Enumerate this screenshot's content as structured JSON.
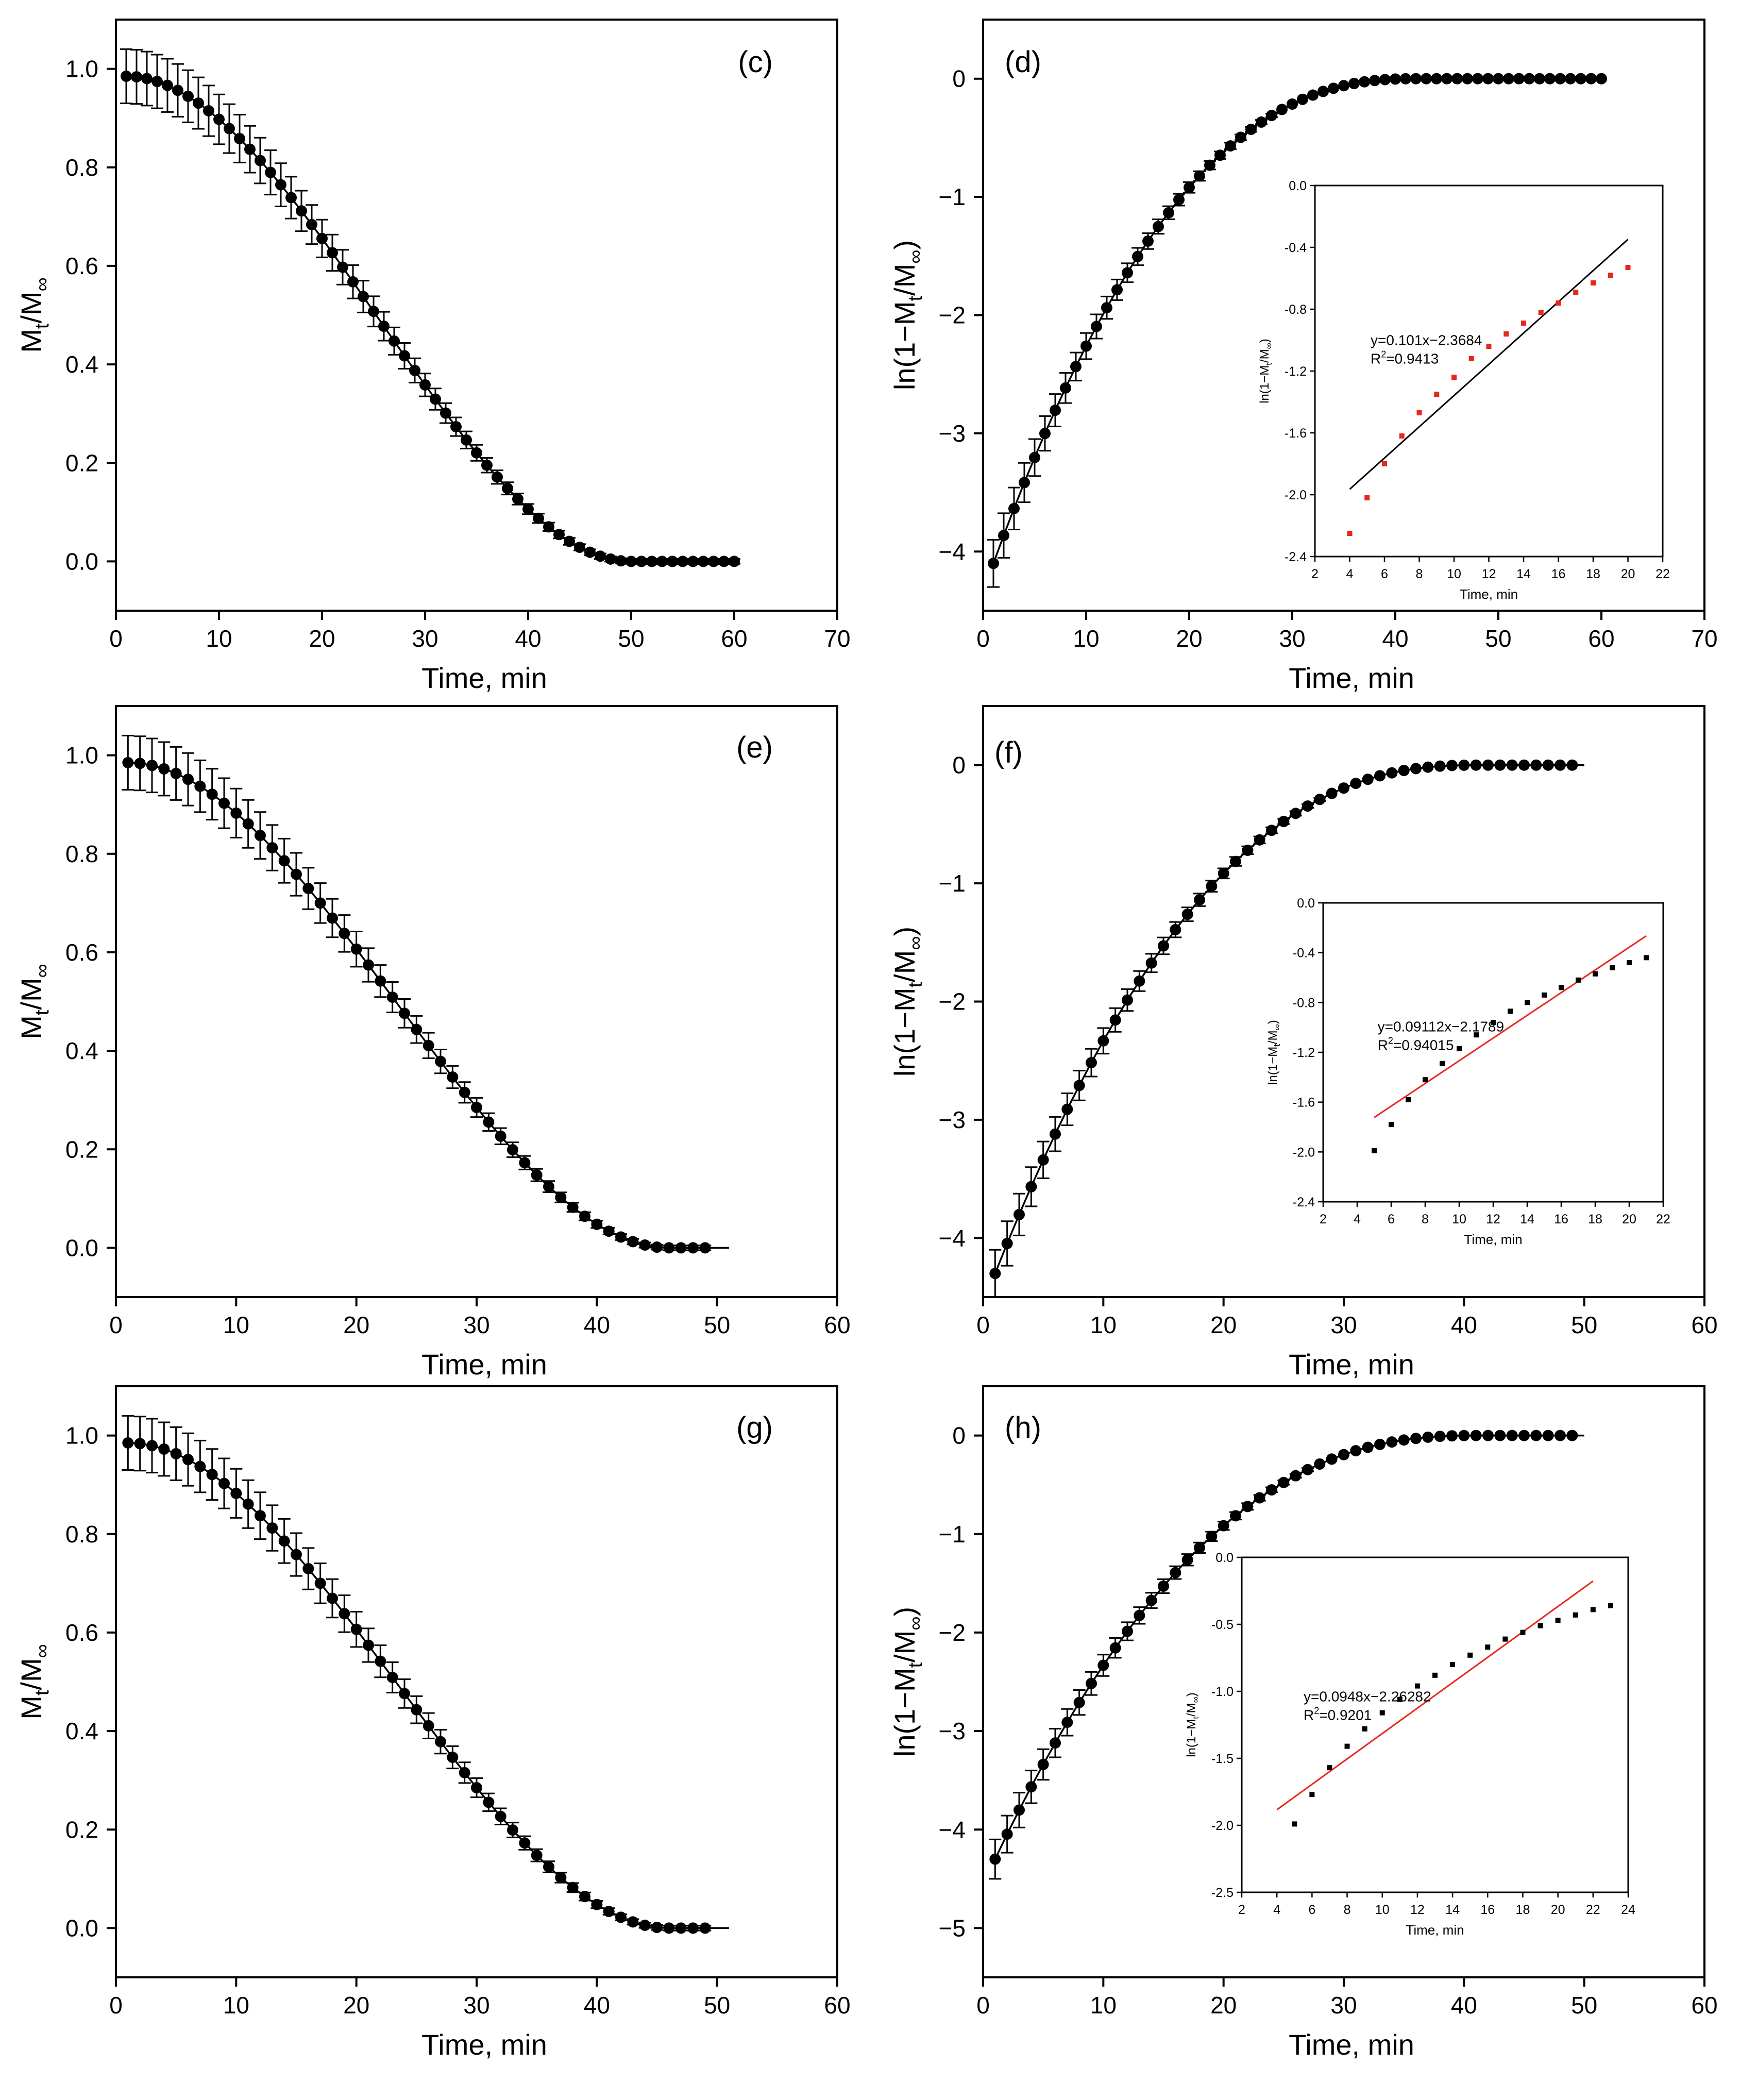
{
  "figure": {
    "panels": [
      {
        "id": "c",
        "label": "(c)"
      },
      {
        "id": "d",
        "label": "(d)"
      },
      {
        "id": "e",
        "label": "(e)"
      },
      {
        "id": "f",
        "label": "(f)"
      },
      {
        "id": "g",
        "label": "(g)"
      },
      {
        "id": "h",
        "label": "(h)"
      }
    ]
  },
  "chart_data": [
    {
      "panel": "(c)",
      "type": "scatter",
      "title": "",
      "xlabel": "Time, min",
      "ylabel": "Mt/M∞",
      "ylabel_main": "M",
      "ylabel_sub": "t",
      "ylabel_rest": "/M",
      "ylabel_sub2": "∞",
      "xlim": [
        0,
        70
      ],
      "ylim": [
        -0.1,
        1.1
      ],
      "xticks": [
        0,
        10,
        20,
        30,
        40,
        50,
        60,
        70
      ],
      "yticks": [
        0.0,
        0.2,
        0.4,
        0.6,
        0.8,
        1.0
      ],
      "ytick_labels": [
        "0.0",
        "0.2",
        "0.4",
        "0.6",
        "0.8",
        "1.0"
      ],
      "series": [
        {
          "name": "Mt/M∞",
          "x_start": 1,
          "x_end": 60,
          "y_start": 0.985,
          "y_zero_at": 50,
          "shape": "concave-then-convex decay to 0",
          "error_bar": 0.05,
          "error_bar_min": 0.005
        }
      ]
    },
    {
      "panel": "(d)",
      "type": "scatter",
      "title": "",
      "xlabel": "Time, min",
      "ylabel": "ln(1−Mt/M∞)",
      "xlim": [
        0,
        70
      ],
      "ylim": [
        -4.5,
        0.5
      ],
      "xticks": [
        0,
        10,
        20,
        30,
        40,
        50,
        60,
        70
      ],
      "yticks": [
        -4,
        -3,
        -2,
        -1,
        0
      ],
      "ytick_labels": [
        "−4",
        "−3",
        "−2",
        "−1",
        "0"
      ],
      "series": [
        {
          "name": "ln(1−Mt/M∞)",
          "x_start": 1,
          "x_end": 60,
          "y_start": -4.1,
          "y_zero_at": 42,
          "error_bar": 0.2
        }
      ],
      "inset": {
        "xlabel": "Time, min",
        "ylabel": "ln(1−Mt/M∞)",
        "xlim": [
          2,
          22
        ],
        "ylim": [
          -2.4,
          0.0
        ],
        "xticks": [
          2,
          4,
          6,
          8,
          10,
          12,
          14,
          16,
          18,
          20,
          22
        ],
        "yticks": [
          -2.4,
          -2.0,
          -1.6,
          -1.2,
          -0.8,
          -0.4,
          0.0
        ],
        "ytick_labels": [
          "-2.4",
          "-2.0",
          "-1.6",
          "-1.2",
          "-0.8",
          "-0.4",
          "0.0"
        ],
        "x": [
          4,
          5,
          6,
          7,
          8,
          9,
          10,
          11,
          12,
          13,
          14,
          15,
          16,
          17,
          18,
          19,
          20
        ],
        "y": [
          -2.25,
          -2.02,
          -1.8,
          -1.62,
          -1.47,
          -1.35,
          -1.24,
          -1.12,
          -1.04,
          -0.96,
          -0.89,
          -0.82,
          -0.76,
          -0.69,
          -0.63,
          -0.58,
          -0.53
        ],
        "point_color": "#e8271a",
        "fit": {
          "slope": 0.101,
          "intercept": -2.3684,
          "x_range": [
            4,
            20
          ],
          "color": "#000000"
        },
        "equation": "y=0.101x−2.3684",
        "r2_prefix": "R",
        "r2_sup": "2",
        "r2_value": "=0.9413"
      }
    },
    {
      "panel": "(e)",
      "type": "scatter",
      "title": "",
      "xlabel": "Time, min",
      "ylabel": "Mt/M∞",
      "xlim": [
        0,
        60
      ],
      "ylim": [
        -0.1,
        1.1
      ],
      "xticks": [
        0,
        10,
        20,
        30,
        40,
        50,
        60
      ],
      "yticks": [
        0.0,
        0.2,
        0.4,
        0.6,
        0.8,
        1.0
      ],
      "ytick_labels": [
        "0.0",
        "0.2",
        "0.4",
        "0.6",
        "0.8",
        "1.0"
      ],
      "series": [
        {
          "name": "Mt/M∞",
          "x_start": 1,
          "x_end": 49,
          "line_end": 51,
          "y_start": 0.985,
          "y_zero_at": 46,
          "error_bar": 0.05,
          "error_bar_min": 0.005
        }
      ]
    },
    {
      "panel": "(f)",
      "type": "scatter",
      "title": "",
      "xlabel": "Time, min",
      "ylabel": "ln(1−Mt/M∞)",
      "xlim": [
        0,
        60
      ],
      "ylim": [
        -4.5,
        0.5
      ],
      "xticks": [
        0,
        10,
        20,
        30,
        40,
        50,
        60
      ],
      "yticks": [
        -4,
        -3,
        -2,
        -1,
        0
      ],
      "ytick_labels": [
        "−4",
        "−3",
        "−2",
        "−1",
        "0"
      ],
      "series": [
        {
          "name": "ln(1−Mt/M∞)",
          "x_start": 1,
          "x_end": 49,
          "line_end": 50,
          "y_start": -4.3,
          "y_zero_at": 41,
          "error_bar": 0.2
        }
      ],
      "inset": {
        "xlabel": "Time, min",
        "ylabel": "ln(1−Mt/M∞)",
        "xlim": [
          2,
          22
        ],
        "ylim": [
          -2.4,
          0.0
        ],
        "xticks": [
          2,
          4,
          6,
          8,
          10,
          12,
          14,
          16,
          18,
          20,
          22
        ],
        "yticks": [
          -2.4,
          -2.0,
          -1.6,
          -1.2,
          -0.8,
          -0.4,
          0.0
        ],
        "ytick_labels": [
          "-2.4",
          "-2.0",
          "-1.6",
          "-1.2",
          "-0.8",
          "-0.4",
          "0.0"
        ],
        "x": [
          5,
          6,
          7,
          8,
          9,
          10,
          11,
          12,
          13,
          14,
          15,
          16,
          17,
          18,
          19,
          20,
          21
        ],
        "y": [
          -1.99,
          -1.78,
          -1.58,
          -1.42,
          -1.29,
          -1.17,
          -1.06,
          -0.96,
          -0.87,
          -0.8,
          -0.74,
          -0.68,
          -0.62,
          -0.57,
          -0.52,
          -0.48,
          -0.44
        ],
        "point_color": "#000000",
        "fit": {
          "slope": 0.09112,
          "intercept": -2.1789,
          "x_range": [
            5,
            21
          ],
          "color": "#e8271a"
        },
        "equation": "y=0.09112x−2.1789",
        "r2_prefix": "R",
        "r2_sup": "2",
        "r2_value": "=0.94015"
      }
    },
    {
      "panel": "(g)",
      "type": "scatter",
      "title": "",
      "xlabel": "Time, min",
      "ylabel": "Mt/M∞",
      "xlim": [
        0,
        60
      ],
      "ylim": [
        -0.1,
        1.1
      ],
      "xticks": [
        0,
        10,
        20,
        30,
        40,
        50,
        60
      ],
      "yticks": [
        0.0,
        0.2,
        0.4,
        0.6,
        0.8,
        1.0
      ],
      "ytick_labels": [
        "0.0",
        "0.2",
        "0.4",
        "0.6",
        "0.8",
        "1.0"
      ],
      "series": [
        {
          "name": "Mt/M∞",
          "x_start": 1,
          "x_end": 49,
          "line_end": 51,
          "y_start": 0.985,
          "y_zero_at": 46,
          "error_bar": 0.05,
          "error_bar_min": 0.005
        }
      ]
    },
    {
      "panel": "(h)",
      "type": "scatter",
      "title": "",
      "xlabel": "Time, min",
      "ylabel": "ln(1−Mt/M∞)",
      "xlim": [
        0,
        60
      ],
      "ylim": [
        -5.5,
        0.5
      ],
      "xticks": [
        0,
        10,
        20,
        30,
        40,
        50,
        60
      ],
      "yticks": [
        -5,
        -4,
        -3,
        -2,
        -1,
        0
      ],
      "ytick_labels": [
        "−5",
        "−4",
        "−3",
        "−2",
        "−1",
        "0"
      ],
      "series": [
        {
          "name": "ln(1−Mt/M∞)",
          "x_start": 1,
          "x_end": 49,
          "line_end": 50,
          "y_start": -4.3,
          "y_zero_at": 41,
          "error_bar": 0.2
        }
      ],
      "inset": {
        "xlabel": "Time, min",
        "ylabel": "ln(1−Mt/M∞)",
        "xlim": [
          2,
          24
        ],
        "ylim": [
          -2.5,
          0.0
        ],
        "xticks": [
          2,
          4,
          6,
          8,
          10,
          12,
          14,
          16,
          18,
          20,
          22,
          24
        ],
        "yticks": [
          -2.5,
          -2.0,
          -1.5,
          -1.0,
          -0.5,
          0.0
        ],
        "ytick_labels": [
          "-2.5",
          "-2.0",
          "-1.5",
          "-1.0",
          "-0.5",
          "0.0"
        ],
        "x": [
          5,
          6,
          7,
          8,
          9,
          10,
          11,
          12,
          13,
          14,
          15,
          16,
          17,
          18,
          19,
          20,
          21,
          22,
          23
        ],
        "y": [
          -1.99,
          -1.77,
          -1.57,
          -1.41,
          -1.28,
          -1.16,
          -1.06,
          -0.96,
          -0.88,
          -0.8,
          -0.73,
          -0.67,
          -0.61,
          -0.56,
          -0.51,
          -0.47,
          -0.43,
          -0.39,
          -0.36
        ],
        "point_color": "#000000",
        "fit": {
          "slope": 0.0948,
          "intercept": -2.26282,
          "x_range": [
            4,
            22
          ],
          "color": "#e8271a"
        },
        "equation": "y=0.0948x−2.26282",
        "r2_prefix": "R",
        "r2_sup": "2",
        "r2_value": "=0.9201"
      }
    }
  ]
}
